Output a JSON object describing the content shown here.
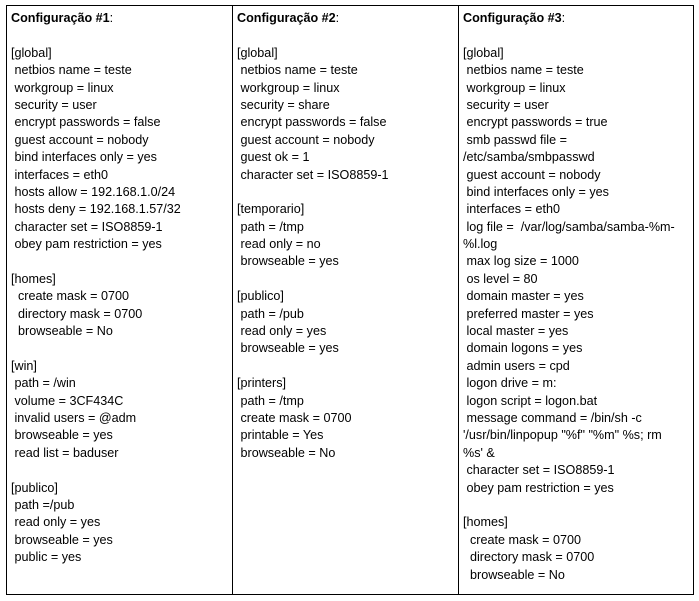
{
  "columns": [
    {
      "title": "Configuração #1",
      "lines": [
        "",
        "[global]",
        " netbios name = teste",
        " workgroup = linux",
        " security = user",
        " encrypt passwords = false",
        " guest account = nobody",
        " bind interfaces only = yes",
        " interfaces = eth0",
        " hosts allow = 192.168.1.0/24",
        " hosts deny = 192.168.1.57/32",
        " character set = ISO8859-1",
        " obey pam restriction = yes",
        "",
        "[homes]",
        "  create mask = 0700",
        "  directory mask = 0700",
        "  browseable = No",
        "",
        "[win]",
        " path = /win",
        " volume = 3CF434C",
        " invalid users = @adm",
        " browseable = yes",
        " read list = baduser",
        "",
        "[publico]",
        " path =/pub",
        " read only = yes",
        " browseable = yes",
        " public = yes"
      ]
    },
    {
      "title": "Configuração #2",
      "lines": [
        "",
        "[global]",
        " netbios name = teste",
        " workgroup = linux",
        " security = share",
        " encrypt passwords = false",
        " guest account = nobody",
        " guest ok = 1",
        " character set = ISO8859-1",
        "",
        "[temporario]",
        " path = /tmp",
        " read only = no",
        " browseable = yes",
        "",
        "[publico]",
        " path = /pub",
        " read only = yes",
        " browseable = yes",
        "",
        "[printers]",
        " path = /tmp",
        " create mask = 0700",
        " printable = Yes",
        " browseable = No"
      ]
    },
    {
      "title": "Configuração #3",
      "lines": [
        "",
        "[global]",
        " netbios name = teste",
        " workgroup = linux",
        " security = user",
        " encrypt passwords = true",
        " smb passwd file =",
        "/etc/samba/smbpasswd",
        " guest account = nobody",
        " bind interfaces only = yes",
        " interfaces = eth0",
        " log file =  /var/log/samba/samba-%m-",
        "%l.log",
        " max log size = 1000",
        " os level = 80",
        " domain master = yes",
        " preferred master = yes",
        " local master = yes",
        " domain logons = yes",
        " admin users = cpd",
        " logon drive = m:",
        " logon script = logon.bat",
        " message command = /bin/sh -c",
        "'/usr/bin/linpopup \"%f\" \"%m\" %s; rm",
        "%s' &",
        " character set = ISO8859-1",
        " obey pam restriction = yes",
        "",
        "[homes]",
        "  create mask = 0700",
        "  directory mask = 0700",
        "  browseable = No"
      ]
    }
  ],
  "title_suffix": ":"
}
